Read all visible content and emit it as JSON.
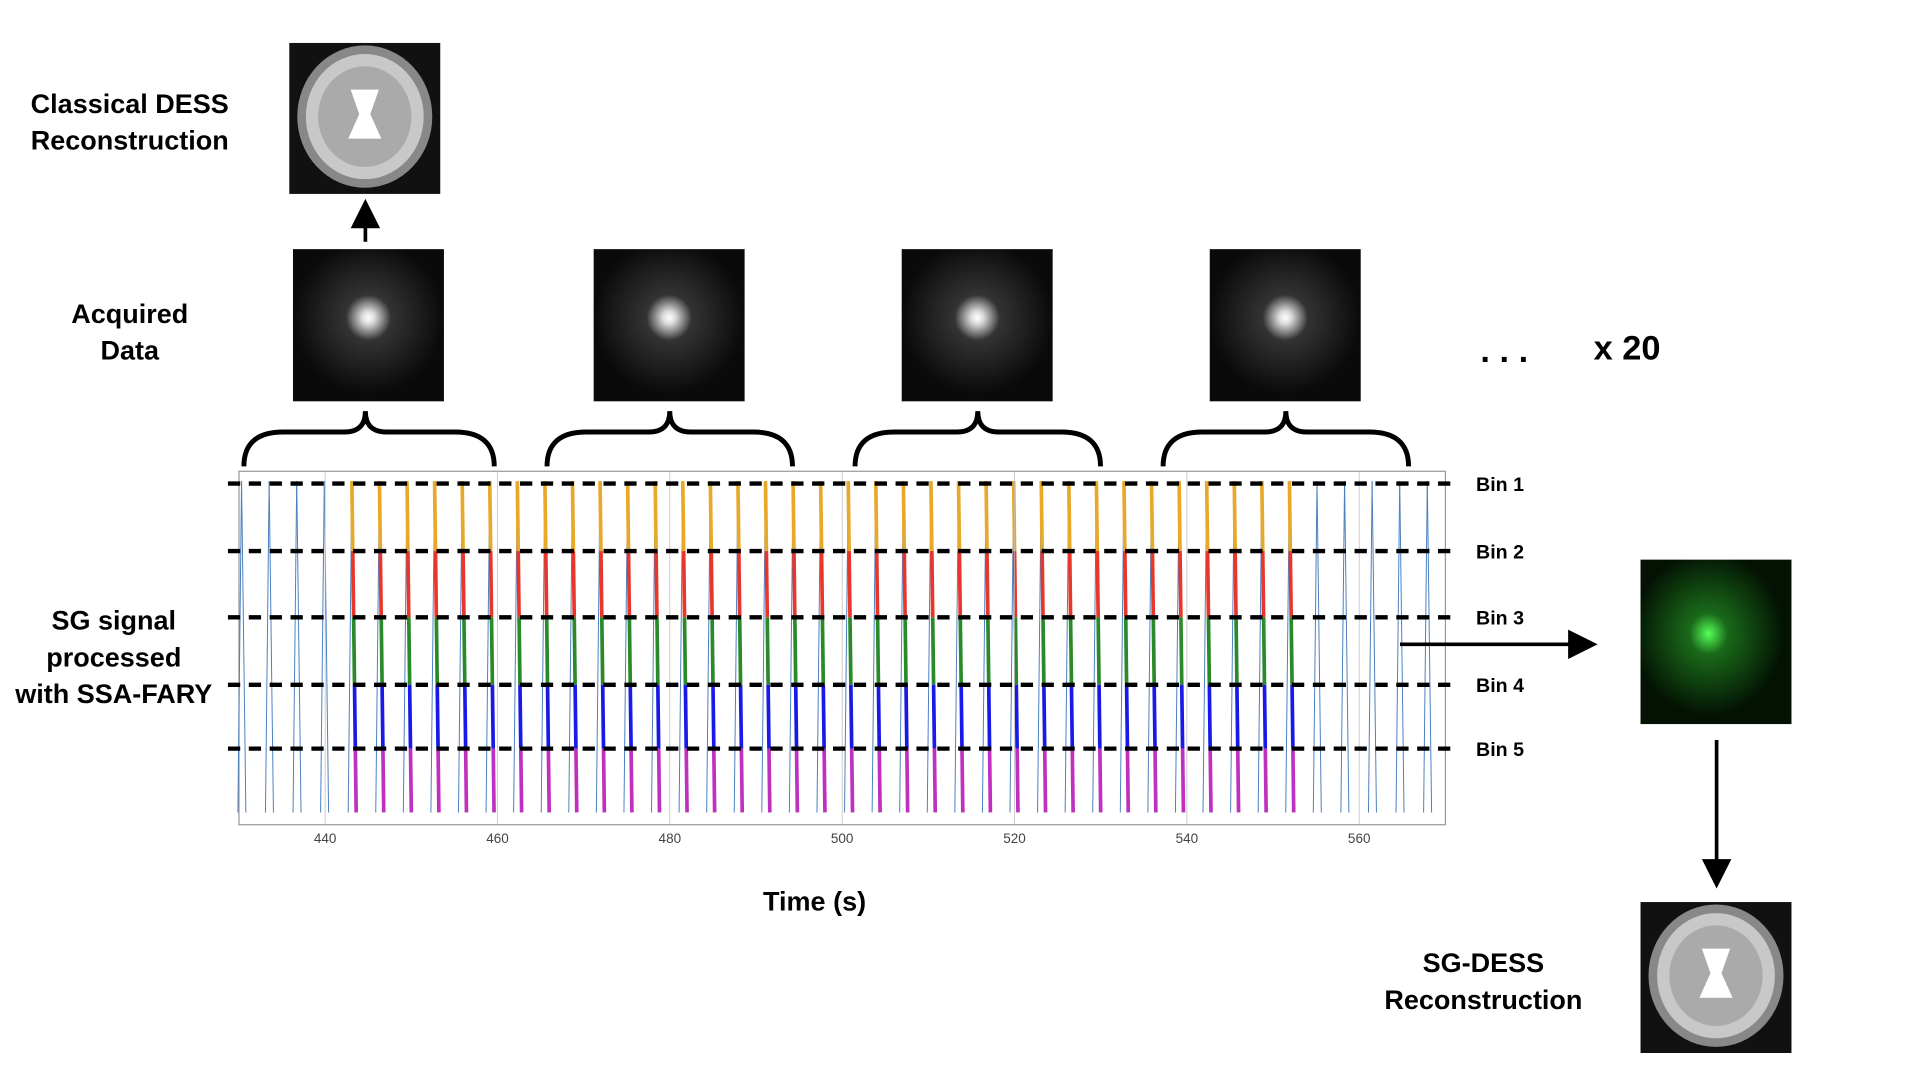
{
  "classical_label": [
    "Classical DESS",
    "Reconstruction"
  ],
  "acquired_label": [
    "Acquired",
    "Data"
  ],
  "sg_label": [
    "SG signal",
    "processed",
    "with SSA-FARY"
  ],
  "ellipsis": ". . .",
  "multiplier": "x 20",
  "sg_dess_label": [
    "SG-DESS",
    "Reconstruction"
  ],
  "plot": {
    "xlim": [
      430,
      570
    ],
    "xticks": [
      440,
      460,
      480,
      500,
      520,
      540,
      560
    ],
    "x_label": "Time (s)",
    "bins": [
      "Bin 1",
      "Bin 2",
      "Bin 3",
      "Bin 4",
      "Bin 5"
    ]
  }
}
